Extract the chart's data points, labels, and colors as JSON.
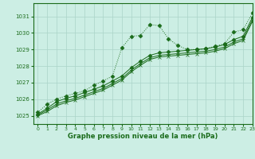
{
  "title": "Graphe pression niveau de la mer (hPa)",
  "background_color": "#cceee4",
  "grid_color": "#aad4c8",
  "line_color": "#1a6b1a",
  "xlim": [
    -0.5,
    23
  ],
  "ylim": [
    1024.5,
    1031.8
  ],
  "yticks": [
    1025,
    1026,
    1027,
    1028,
    1029,
    1030,
    1031
  ],
  "xticks": [
    0,
    1,
    2,
    3,
    4,
    5,
    6,
    7,
    8,
    9,
    10,
    11,
    12,
    13,
    14,
    15,
    16,
    17,
    18,
    19,
    20,
    21,
    22,
    23
  ],
  "series": [
    {
      "x": [
        0,
        1,
        2,
        3,
        4,
        5,
        6,
        7,
        8,
        9,
        10,
        11,
        12,
        13,
        14,
        15,
        16,
        17,
        18,
        19,
        20,
        21,
        22,
        23
      ],
      "y": [
        1025.2,
        1025.7,
        1026.0,
        1026.2,
        1026.35,
        1026.5,
        1026.85,
        1027.1,
        1027.4,
        1029.1,
        1029.8,
        1029.85,
        1030.5,
        1030.45,
        1029.65,
        1029.25,
        1029.0,
        1029.0,
        1029.05,
        1029.2,
        1029.35,
        1030.05,
        1030.2,
        1031.2
      ],
      "style": "dotted",
      "marker": "D"
    },
    {
      "x": [
        0,
        1,
        2,
        3,
        4,
        5,
        6,
        7,
        8,
        9,
        10,
        11,
        12,
        13,
        14,
        15,
        16,
        17,
        18,
        19,
        20,
        21,
        22,
        23
      ],
      "y": [
        1025.1,
        1025.45,
        1025.85,
        1026.05,
        1026.2,
        1026.4,
        1026.6,
        1026.8,
        1027.1,
        1027.4,
        1027.9,
        1028.3,
        1028.65,
        1028.8,
        1028.85,
        1028.9,
        1028.95,
        1029.0,
        1029.05,
        1029.15,
        1029.3,
        1029.6,
        1029.8,
        1030.95
      ],
      "style": "solid",
      "marker": "D"
    },
    {
      "x": [
        0,
        1,
        2,
        3,
        4,
        5,
        6,
        7,
        8,
        9,
        10,
        11,
        12,
        13,
        14,
        15,
        16,
        17,
        18,
        19,
        20,
        21,
        22,
        23
      ],
      "y": [
        1025.05,
        1025.35,
        1025.7,
        1025.9,
        1026.05,
        1026.25,
        1026.45,
        1026.65,
        1026.95,
        1027.25,
        1027.75,
        1028.15,
        1028.5,
        1028.65,
        1028.7,
        1028.75,
        1028.8,
        1028.85,
        1028.9,
        1029.0,
        1029.15,
        1029.45,
        1029.65,
        1030.8
      ],
      "style": "solid",
      "marker": "+"
    },
    {
      "x": [
        0,
        1,
        2,
        3,
        4,
        5,
        6,
        7,
        8,
        9,
        10,
        11,
        12,
        13,
        14,
        15,
        16,
        17,
        18,
        19,
        20,
        21,
        22,
        23
      ],
      "y": [
        1025.0,
        1025.25,
        1025.6,
        1025.8,
        1025.95,
        1026.15,
        1026.35,
        1026.55,
        1026.85,
        1027.15,
        1027.65,
        1028.05,
        1028.4,
        1028.55,
        1028.6,
        1028.65,
        1028.7,
        1028.75,
        1028.8,
        1028.9,
        1029.05,
        1029.35,
        1029.55,
        1030.7
      ],
      "style": "solid",
      "marker": "x"
    }
  ]
}
